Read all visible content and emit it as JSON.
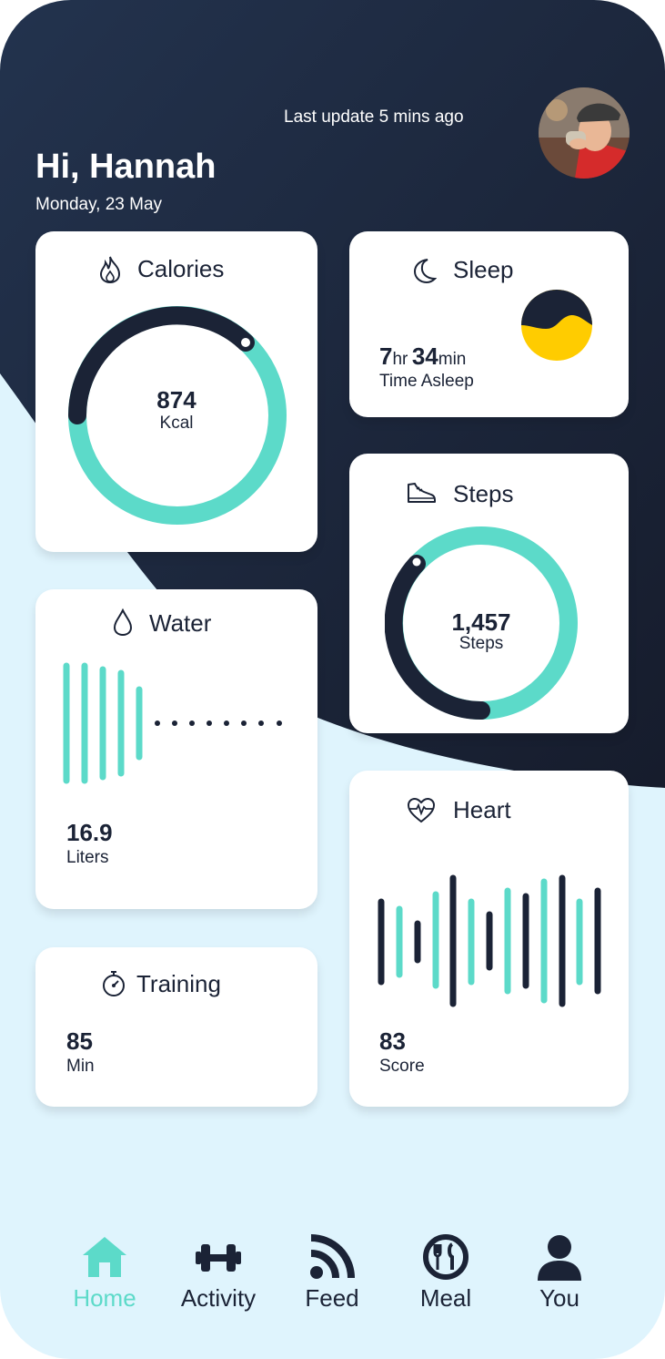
{
  "header": {
    "last_update": "Last update 5 mins ago",
    "greeting": "Hi, Hannah",
    "date": "Monday, 23 May"
  },
  "colors": {
    "navy": "#1b2336",
    "teal": "#5cdac9",
    "light_bg": "#dff4fd",
    "yellow": "#ffcc00"
  },
  "cards": {
    "calories": {
      "title": "Calories",
      "value": "874",
      "unit": "Kcal",
      "icon": "flame-icon",
      "progress": 0.72
    },
    "sleep": {
      "title": "Sleep",
      "hours": "7",
      "hours_unit": "hr",
      "minutes": "34",
      "minutes_unit": "min",
      "caption": "Time Asleep",
      "icon": "moon-icon"
    },
    "steps": {
      "title": "Steps",
      "value": "1,457",
      "unit": "Steps",
      "icon": "shoe-icon",
      "progress": 0.6
    },
    "water": {
      "title": "Water",
      "value": "16.9",
      "unit": "Liters",
      "icon": "water-drop-icon"
    },
    "heart": {
      "title": "Heart",
      "value": "83",
      "unit": "Score",
      "icon": "heart-pulse-icon"
    },
    "training": {
      "title": "Training",
      "value": "85",
      "unit": "Min",
      "icon": "stopwatch-icon"
    }
  },
  "nav": {
    "items": [
      {
        "label": "Home",
        "icon": "home-icon",
        "active": true
      },
      {
        "label": "Activity",
        "icon": "dumbbell-icon",
        "active": false
      },
      {
        "label": "Feed",
        "icon": "rss-icon",
        "active": false
      },
      {
        "label": "Meal",
        "icon": "meal-icon",
        "active": false
      },
      {
        "label": "You",
        "icon": "user-icon",
        "active": false
      }
    ]
  }
}
